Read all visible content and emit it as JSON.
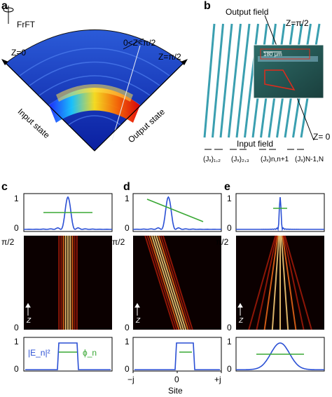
{
  "panels": {
    "a": {
      "letter": "a",
      "frft": "FrFT",
      "z0": "Z=0",
      "zmid": "0<Z<π/2",
      "zend": "Z=π/2",
      "input": "Input state",
      "output": "Output state"
    },
    "b": {
      "letter": "b",
      "output_field": "Output field",
      "input_field": "Input field",
      "ztop": "Z=π/2",
      "zbottom": "Z= 0",
      "scale": "180 μm",
      "couplings": [
        "(Jₓ)₁,₂",
        "(Jₓ)₂,₃",
        "(Jₓ)n,n+1",
        "(Jₓ)N-1,N"
      ]
    },
    "c": {
      "letter": "c"
    },
    "d": {
      "letter": "d"
    },
    "e": {
      "letter": "e"
    }
  },
  "axes": {
    "top_ticks": [
      "1",
      "0"
    ],
    "mid_ticks": [
      "π/2",
      "0"
    ],
    "bottom_ticks": [
      "1",
      "0"
    ],
    "z_label": "Z",
    "x_ticks": [
      "−j",
      "0",
      "+j"
    ],
    "x_label": "Site"
  },
  "legend": {
    "amplitude": "|E_n|²",
    "phase": "ϕ_n"
  },
  "colors": {
    "amplitude": "#2a4fd4",
    "phase": "#3aa835",
    "waveguide": "#3a9fb0",
    "heat_dark": "#100000",
    "heat_bright": "#ffd27a"
  }
}
